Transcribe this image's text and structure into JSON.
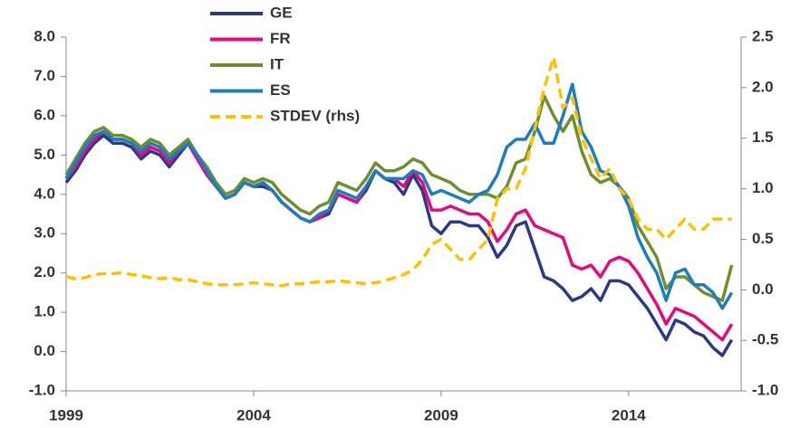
{
  "chart_data": {
    "type": "line",
    "legend": "top",
    "xlim": [
      1999,
      2017
    ],
    "xticks": [
      1999,
      2004,
      2009,
      2014
    ],
    "ylim": [
      -1,
      8
    ],
    "yticks": [
      {
        "value": 8,
        "label": "8.0"
      },
      {
        "value": 7,
        "label": "7.0"
      },
      {
        "value": 6,
        "label": "6.0"
      },
      {
        "value": 5,
        "label": "5.0"
      },
      {
        "value": 4,
        "label": "4.0"
      },
      {
        "value": 3,
        "label": "3.0"
      },
      {
        "value": 2,
        "label": "2.0"
      },
      {
        "value": 1,
        "label": "1.0"
      },
      {
        "value": 0,
        "label": "0.0"
      },
      {
        "value": -1,
        "label": "-1.0"
      }
    ],
    "y2lim": [
      -1,
      2.5
    ],
    "y2ticks": [
      2.5,
      {
        "value": 2,
        "label": "2.0"
      },
      1.5,
      {
        "value": 1,
        "label": "1.0"
      },
      0.5,
      {
        "value": 0,
        "label": "0.0"
      },
      -0.5,
      {
        "value": -1,
        "label": "-1.0"
      }
    ],
    "x": [
      1999,
      1999.25,
      1999.5,
      1999.75,
      2000,
      2000.25,
      2000.5,
      2000.75,
      2001,
      2001.25,
      2001.5,
      2001.75,
      2002,
      2002.25,
      2002.5,
      2002.75,
      2003,
      2003.25,
      2003.5,
      2003.75,
      2004,
      2004.25,
      2004.5,
      2004.75,
      2005,
      2005.25,
      2005.5,
      2005.75,
      2006,
      2006.25,
      2006.5,
      2006.75,
      2007,
      2007.25,
      2007.5,
      2007.75,
      2008,
      2008.25,
      2008.5,
      2008.75,
      2009,
      2009.25,
      2009.5,
      2009.75,
      2010,
      2010.25,
      2010.5,
      2010.75,
      2011,
      2011.25,
      2011.5,
      2011.75,
      2012,
      2012.25,
      2012.5,
      2012.75,
      2013,
      2013.25,
      2013.5,
      2013.75,
      2014,
      2014.25,
      2014.5,
      2014.75,
      2015,
      2015.25,
      2015.5,
      2015.75,
      2016,
      2016.25,
      2016.5,
      2016.75
    ],
    "series": [
      {
        "name": "GE",
        "color": "#2b3a86",
        "values": [
          4.3,
          4.6,
          5.0,
          5.3,
          5.5,
          5.3,
          5.3,
          5.2,
          4.9,
          5.1,
          5.0,
          4.7,
          5.0,
          5.3,
          4.9,
          4.5,
          4.2,
          3.9,
          4.0,
          4.3,
          4.2,
          4.2,
          4.1,
          3.8,
          3.6,
          3.4,
          3.3,
          3.4,
          3.5,
          4.0,
          3.9,
          3.8,
          4.1,
          4.6,
          4.4,
          4.3,
          4.0,
          4.5,
          4.1,
          3.2,
          3.0,
          3.3,
          3.3,
          3.2,
          3.2,
          2.9,
          2.4,
          2.7,
          3.2,
          3.3,
          2.6,
          1.9,
          1.8,
          1.6,
          1.3,
          1.4,
          1.6,
          1.3,
          1.8,
          1.8,
          1.7,
          1.4,
          1.1,
          0.7,
          0.3,
          0.8,
          0.7,
          0.5,
          0.4,
          0.1,
          -0.1,
          0.3
        ]
      },
      {
        "name": "FR",
        "color": "#e5097f",
        "values": [
          4.4,
          4.7,
          5.1,
          5.4,
          5.6,
          5.4,
          5.4,
          5.3,
          5.0,
          5.2,
          5.1,
          4.8,
          5.1,
          5.3,
          4.9,
          4.5,
          4.2,
          3.9,
          4.0,
          4.3,
          4.2,
          4.3,
          4.1,
          3.8,
          3.6,
          3.4,
          3.3,
          3.4,
          3.6,
          4.0,
          3.9,
          3.8,
          4.2,
          4.6,
          4.4,
          4.4,
          4.2,
          4.6,
          4.3,
          3.6,
          3.6,
          3.7,
          3.6,
          3.5,
          3.5,
          3.3,
          2.8,
          3.1,
          3.5,
          3.6,
          3.2,
          3.1,
          3.0,
          2.9,
          2.2,
          2.1,
          2.2,
          1.9,
          2.3,
          2.4,
          2.3,
          2.0,
          1.6,
          1.2,
          0.7,
          1.1,
          1.0,
          0.9,
          0.7,
          0.5,
          0.3,
          0.7
        ]
      },
      {
        "name": "IT",
        "color": "#6f8f2a",
        "values": [
          4.5,
          4.9,
          5.3,
          5.6,
          5.7,
          5.5,
          5.5,
          5.4,
          5.2,
          5.4,
          5.3,
          5.0,
          5.2,
          5.4,
          5.0,
          4.7,
          4.3,
          4.0,
          4.1,
          4.4,
          4.3,
          4.4,
          4.3,
          4.0,
          3.8,
          3.6,
          3.5,
          3.7,
          3.8,
          4.3,
          4.2,
          4.1,
          4.4,
          4.8,
          4.6,
          4.6,
          4.7,
          4.9,
          4.8,
          4.5,
          4.4,
          4.3,
          4.1,
          4.0,
          4.0,
          4.0,
          3.9,
          4.2,
          4.8,
          4.9,
          5.6,
          6.5,
          6.0,
          5.6,
          6.0,
          5.1,
          4.5,
          4.3,
          4.4,
          4.2,
          3.9,
          3.2,
          2.8,
          2.4,
          1.6,
          1.9,
          1.9,
          1.7,
          1.5,
          1.4,
          1.3,
          2.2
        ]
      },
      {
        "name": "ES",
        "color": "#1b7dc3",
        "values": [
          4.4,
          4.8,
          5.2,
          5.5,
          5.6,
          5.4,
          5.4,
          5.3,
          5.1,
          5.3,
          5.2,
          4.9,
          5.1,
          5.3,
          5.0,
          4.6,
          4.2,
          3.9,
          4.0,
          4.3,
          4.2,
          4.3,
          4.1,
          3.8,
          3.6,
          3.4,
          3.3,
          3.5,
          3.6,
          4.1,
          4.0,
          3.9,
          4.2,
          4.6,
          4.4,
          4.4,
          4.4,
          4.6,
          4.5,
          4.0,
          4.1,
          4.0,
          3.9,
          3.8,
          4.0,
          4.1,
          4.5,
          5.2,
          5.4,
          5.4,
          5.8,
          5.3,
          5.3,
          6.0,
          6.8,
          5.6,
          5.2,
          4.6,
          4.5,
          4.2,
          3.7,
          2.9,
          2.4,
          2.0,
          1.3,
          2.0,
          2.1,
          1.7,
          1.7,
          1.5,
          1.1,
          1.5
        ]
      },
      {
        "name": "STDEV (rhs)",
        "color": "#ffc000",
        "axis": "y2",
        "dashed": true,
        "values": [
          0.13,
          0.11,
          0.12,
          0.15,
          0.16,
          0.16,
          0.17,
          0.15,
          0.14,
          0.12,
          0.11,
          0.12,
          0.1,
          0.1,
          0.08,
          0.06,
          0.05,
          0.05,
          0.05,
          0.06,
          0.07,
          0.06,
          0.05,
          0.04,
          0.06,
          0.06,
          0.07,
          0.08,
          0.08,
          0.09,
          0.08,
          0.07,
          0.06,
          0.07,
          0.09,
          0.12,
          0.15,
          0.2,
          0.3,
          0.45,
          0.5,
          0.4,
          0.3,
          0.3,
          0.4,
          0.5,
          0.9,
          1.0,
          1.0,
          1.2,
          1.6,
          2.0,
          2.3,
          1.8,
          1.9,
          1.5,
          1.3,
          1.1,
          1.2,
          1.0,
          0.9,
          0.7,
          0.6,
          0.6,
          0.5,
          0.6,
          0.7,
          0.6,
          0.6,
          0.7,
          0.7,
          0.7
        ]
      }
    ]
  }
}
